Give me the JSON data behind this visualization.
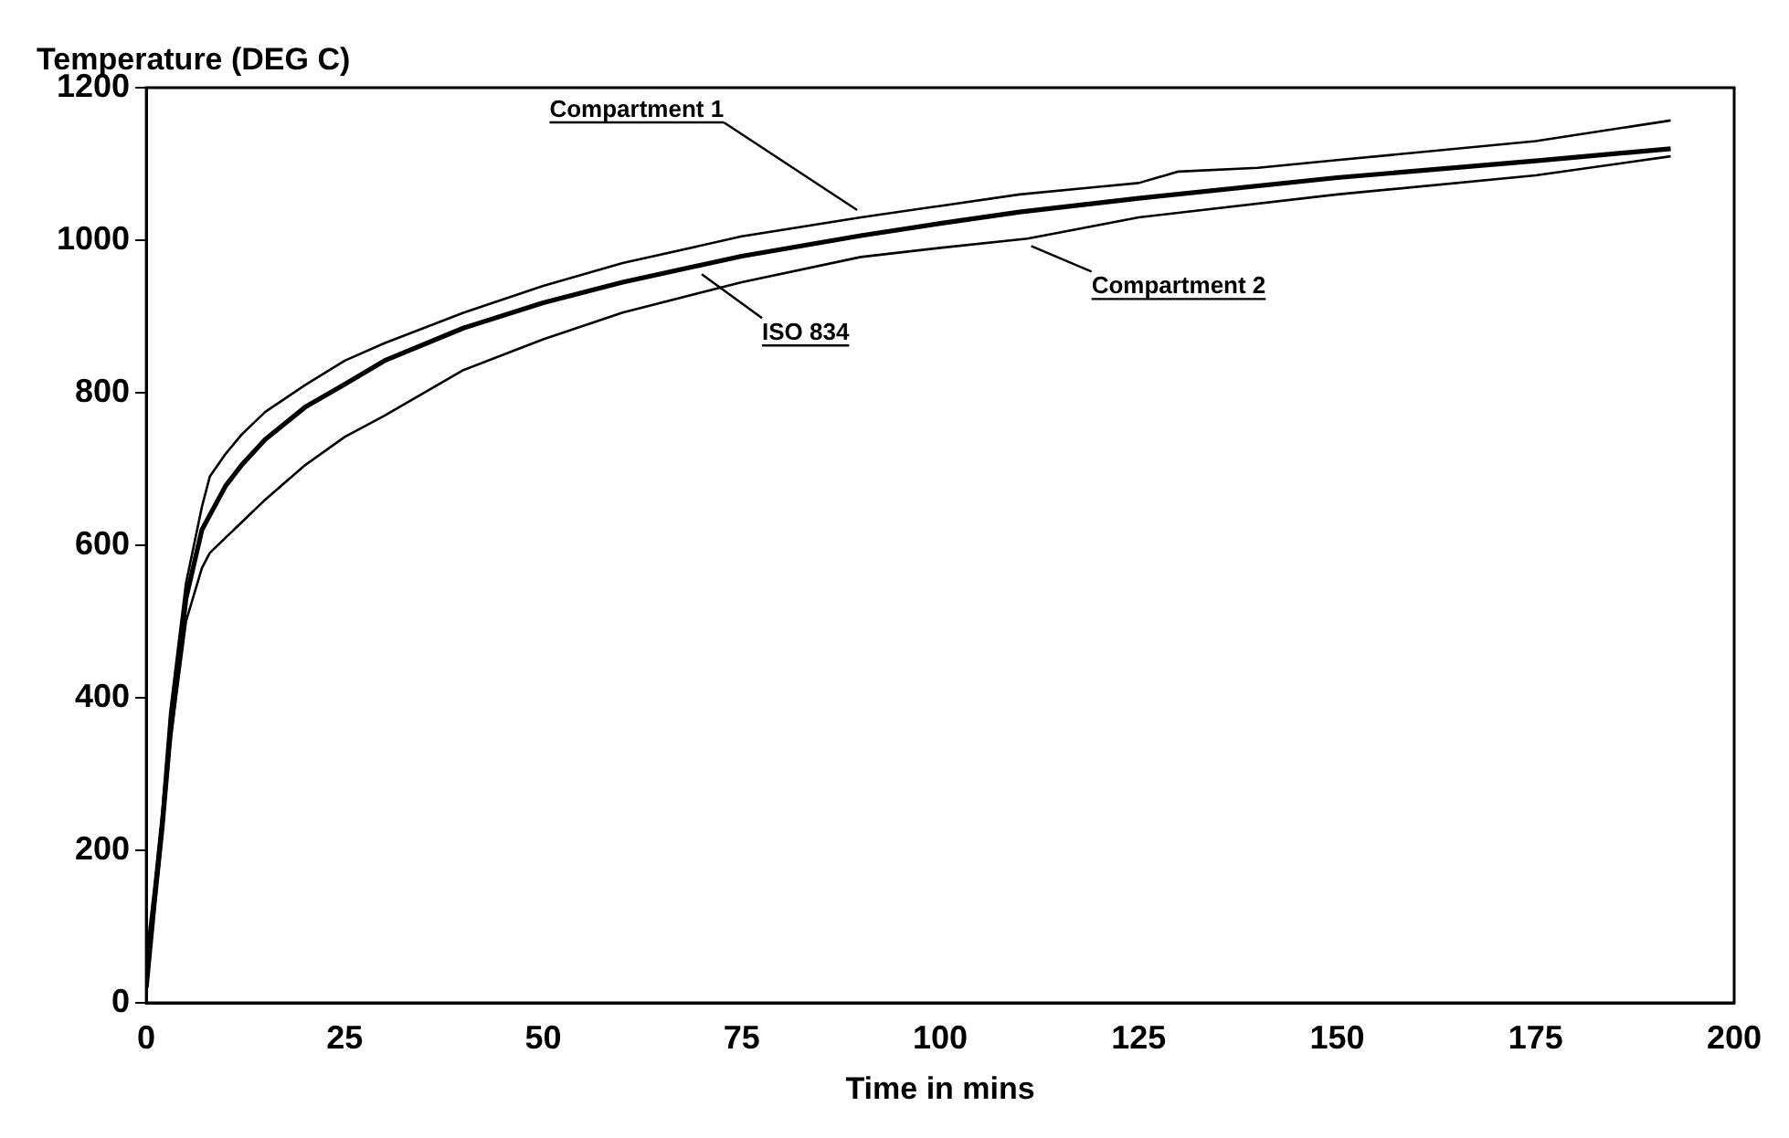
{
  "chart_data": {
    "type": "line",
    "xlabel": "Time in mins",
    "ylabel": "Temperature (DEG C)",
    "xlim": [
      0,
      200
    ],
    "xticks": [
      0,
      25,
      50,
      75,
      100,
      125,
      150,
      175,
      200
    ],
    "ylim": [
      0,
      1200
    ],
    "yticks": [
      0,
      200,
      400,
      600,
      800,
      1000,
      1200
    ],
    "grid": false,
    "legend": false,
    "marker": "none",
    "line_style": "solid",
    "series": [
      {
        "color": "#000000",
        "x": [
          0,
          1,
          2,
          3,
          5,
          7,
          8,
          10,
          12,
          15,
          20,
          25,
          30,
          40,
          50,
          60,
          75,
          90,
          100,
          110,
          120,
          125,
          130,
          140,
          150,
          175,
          192
        ],
        "values": [
          60,
          150,
          250,
          380,
          550,
          650,
          690,
          720,
          745,
          775,
          810,
          842,
          865,
          905,
          940,
          970,
          1005,
          1030,
          1045,
          1060,
          1070,
          1075,
          1090,
          1095,
          1105,
          1130,
          1157
        ]
      },
      {
        "color": "#000000",
        "x": [
          0,
          1,
          2,
          3,
          5,
          7,
          10,
          12,
          15,
          20,
          25,
          30,
          40,
          50,
          60,
          75,
          90,
          100,
          110,
          125,
          150,
          175,
          192
        ],
        "values": [
          20,
          130,
          230,
          350,
          530,
          620,
          678,
          705,
          739,
          781,
          811,
          842,
          885,
          918,
          945,
          979,
          1006,
          1022,
          1037,
          1055,
          1082,
          1104,
          1120
        ]
      },
      {
        "color": "#000000",
        "x": [
          0,
          1,
          2,
          3,
          5,
          7,
          8,
          10,
          12,
          15,
          20,
          25,
          30,
          40,
          50,
          60,
          75,
          90,
          100,
          111,
          125,
          150,
          175,
          192
        ],
        "values": [
          30,
          120,
          220,
          340,
          500,
          570,
          590,
          610,
          630,
          660,
          705,
          742,
          770,
          830,
          870,
          905,
          945,
          978,
          990,
          1002,
          1030,
          1060,
          1085,
          1110
        ]
      }
    ],
    "annotations": [
      {
        "text": "Compartment 1",
        "x": 90,
        "y": 1030
      },
      {
        "text": "ISO 834",
        "x": 69.5,
        "y": 965
      },
      {
        "text": "Compartment 2",
        "x": 111,
        "y": 1002
      }
    ]
  }
}
